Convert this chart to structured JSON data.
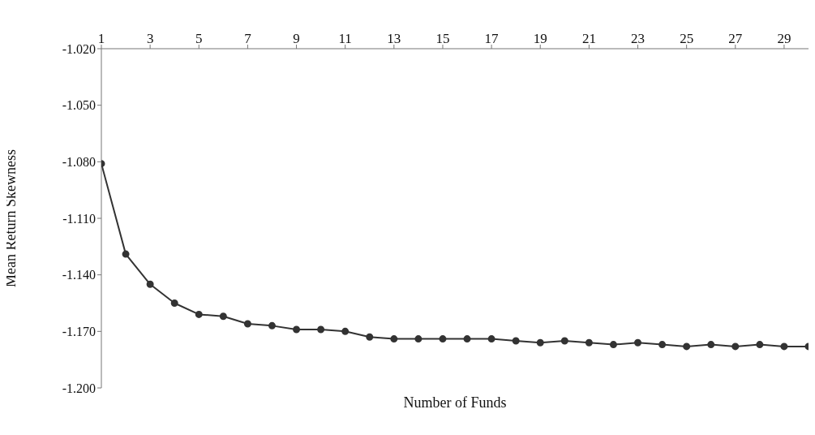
{
  "chart_data": {
    "type": "line",
    "xlabel": "Number of Funds",
    "ylabel": "Mean Return Skewness",
    "x": [
      1,
      2,
      3,
      4,
      5,
      6,
      7,
      8,
      9,
      10,
      11,
      12,
      13,
      14,
      15,
      16,
      17,
      18,
      19,
      20,
      21,
      22,
      23,
      24,
      25,
      26,
      27,
      28,
      29,
      30
    ],
    "series": [
      {
        "color": "#333333",
        "values": [
          -1.081,
          -1.129,
          -1.145,
          -1.155,
          -1.161,
          -1.162,
          -1.166,
          -1.167,
          -1.169,
          -1.169,
          -1.17,
          -1.173,
          -1.174,
          -1.174,
          -1.174,
          -1.174,
          -1.174,
          -1.175,
          -1.176,
          -1.175,
          -1.176,
          -1.177,
          -1.176,
          -1.177,
          -1.178,
          -1.177,
          -1.178,
          -1.177,
          -1.178,
          -1.178
        ]
      }
    ],
    "xlim": [
      1,
      30
    ],
    "xticks": [
      1,
      3,
      5,
      7,
      9,
      11,
      13,
      15,
      17,
      19,
      21,
      23,
      25,
      27,
      29
    ],
    "ylim": [
      -1.2,
      -1.02
    ],
    "yticks": [
      {
        "value": -1.2,
        "label": "-1.200"
      },
      {
        "value": -1.17,
        "label": "-1.170"
      },
      {
        "value": -1.14,
        "label": "-1.140"
      },
      {
        "value": -1.11,
        "label": "-1.110"
      },
      {
        "value": -1.08,
        "label": "-1.080"
      },
      {
        "value": -1.05,
        "label": "-1.050"
      },
      {
        "value": -1.02,
        "label": "-1.020"
      }
    ],
    "grid": false,
    "legend": false,
    "marker": "circle",
    "line_style": "solid"
  }
}
